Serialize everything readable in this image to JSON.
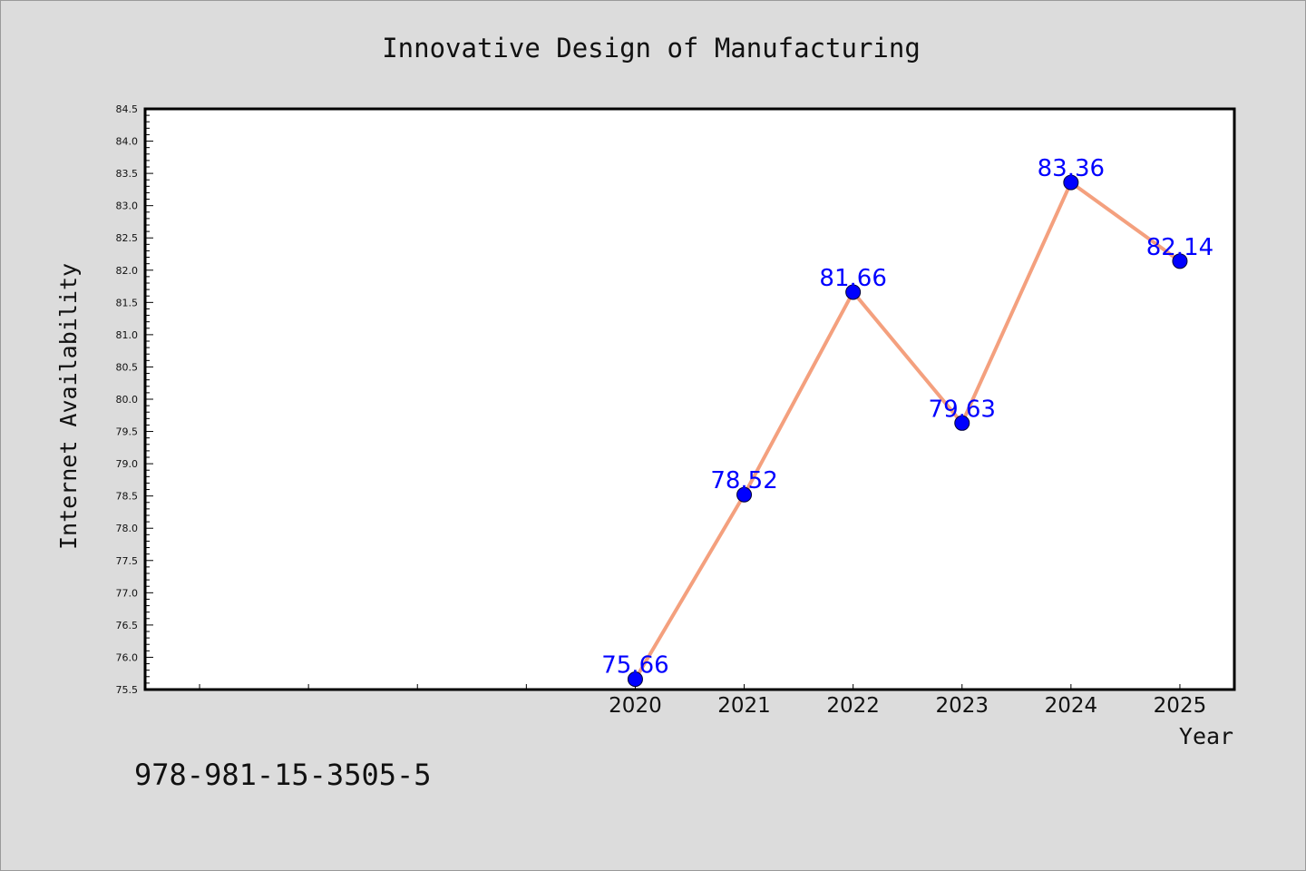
{
  "chart_data": {
    "type": "line",
    "title": "Innovative Design of Manufacturing",
    "xlabel": "Year",
    "ylabel": "Internet Availability",
    "x": [
      2020,
      2021,
      2022,
      2023,
      2024,
      2025
    ],
    "series": [
      {
        "values": [
          75.66,
          78.52,
          81.66,
          79.63,
          83.36,
          82.14
        ]
      }
    ],
    "data_labels": [
      "75.66",
      "78.52",
      "81.66",
      "79.63",
      "83.36",
      "82.14"
    ],
    "x_tick_labels": [
      "2020",
      "2021",
      "2022",
      "2023",
      "2024",
      "2025"
    ],
    "y_tick_labels": [
      "75.5",
      "76.0",
      "76.5",
      "77.0",
      "77.5",
      "78.0",
      "78.5",
      "79.0",
      "79.5",
      "80.0",
      "80.5",
      "81.0",
      "81.5",
      "82.0",
      "82.5",
      "83.0",
      "83.5",
      "84.0",
      "84.5"
    ],
    "ylim": [
      75.5,
      84.5
    ],
    "xlim": [
      2015.5,
      2025.5
    ],
    "grid": false,
    "colors": {
      "line": "#f4a07e",
      "marker": "#0000ff",
      "label": "#0000ff",
      "background": "#dcdcdc",
      "plot_background": "#ffffff"
    }
  },
  "footer_text": "978-981-15-3505-5"
}
